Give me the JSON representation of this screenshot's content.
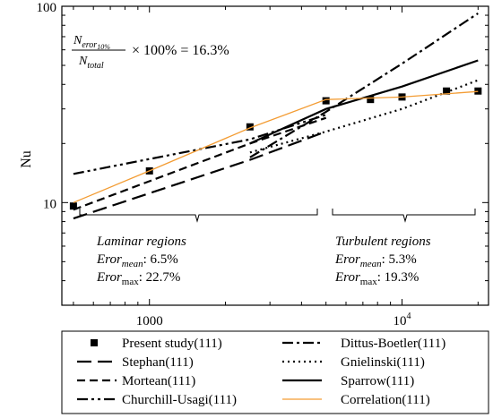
{
  "chart_data": {
    "type": "line",
    "x_scale": "log",
    "y_scale": "log",
    "xlim": [
      450,
      22000
    ],
    "ylim": [
      3,
      100
    ],
    "ylabel": "Nu",
    "xticks": [
      {
        "value": 1000,
        "label": "1000"
      },
      {
        "value": 10000,
        "label": "10^4"
      }
    ],
    "yticks": [
      {
        "value": 10,
        "label": "10"
      },
      {
        "value": 100,
        "label": "100"
      }
    ],
    "grid": false,
    "legend_placement": "below",
    "series": [
      {
        "name": "Present study(111)",
        "style": "markers",
        "color": "#000000",
        "points": [
          [
            500,
            9.6
          ],
          [
            1000,
            14.5
          ],
          [
            2500,
            24.3
          ],
          [
            5000,
            33
          ],
          [
            7500,
            33.5
          ],
          [
            10000,
            34.5
          ],
          [
            15000,
            37
          ],
          [
            20000,
            37
          ]
        ]
      },
      {
        "name": "Stephan(111)",
        "style": "longdash",
        "color": "#000000",
        "points": [
          [
            500,
            8.3
          ],
          [
            2500,
            16.5
          ],
          [
            5000,
            23
          ]
        ]
      },
      {
        "name": "Mortean(111)",
        "style": "dash",
        "color": "#000000",
        "points": [
          [
            500,
            9.2
          ],
          [
            2500,
            20
          ],
          [
            5000,
            27
          ]
        ]
      },
      {
        "name": "Churchill-Usagi(111)",
        "style": "dashdotdot",
        "color": "#000000",
        "points": [
          [
            500,
            14
          ],
          [
            2500,
            21
          ],
          [
            5000,
            28
          ]
        ]
      },
      {
        "name": "Dittus-Boetler(111)",
        "style": "dashdot",
        "color": "#000000",
        "points": [
          [
            2500,
            17
          ],
          [
            5000,
            29
          ],
          [
            10000,
            51
          ],
          [
            20000,
            92
          ]
        ]
      },
      {
        "name": "Gnielinski(111)",
        "style": "dotted",
        "color": "#000000",
        "points": [
          [
            2500,
            18
          ],
          [
            5000,
            23
          ],
          [
            10000,
            30
          ],
          [
            20000,
            42
          ]
        ]
      },
      {
        "name": "Sparrow(111)",
        "style": "solid",
        "color": "#000000",
        "points": [
          [
            2500,
            20
          ],
          [
            5000,
            30
          ],
          [
            10000,
            39
          ],
          [
            20000,
            53
          ]
        ]
      },
      {
        "name": "Correlation(111)",
        "style": "solid",
        "color": "#f39c33",
        "points": [
          [
            500,
            10
          ],
          [
            1000,
            14.5
          ],
          [
            2500,
            24
          ],
          [
            5000,
            33.5
          ],
          [
            10000,
            34.5
          ],
          [
            20000,
            36.8
          ]
        ]
      }
    ],
    "annotations": {
      "error_fraction": {
        "numerator_main": "N",
        "numerator_sub": "eror",
        "numerator_subsub": "10%",
        "denominator_main": "N",
        "denominator_sub": "total",
        "rest": "× 100% = 16.3%"
      },
      "laminar": {
        "title": "Laminar regions",
        "mean_main": "Eror",
        "mean_sub": "mean",
        "mean_value": ": 6.5%",
        "max_main": "Eror",
        "max_sub": "max",
        "max_value": ": 22.7%"
      },
      "turbulent": {
        "title": "Turbulent regions",
        "mean_main": "Eror",
        "mean_sub": "mean",
        "mean_value": ": 5.3%",
        "max_main": "Eror",
        "max_sub": "max",
        "max_value": ": 19.3%"
      }
    }
  }
}
